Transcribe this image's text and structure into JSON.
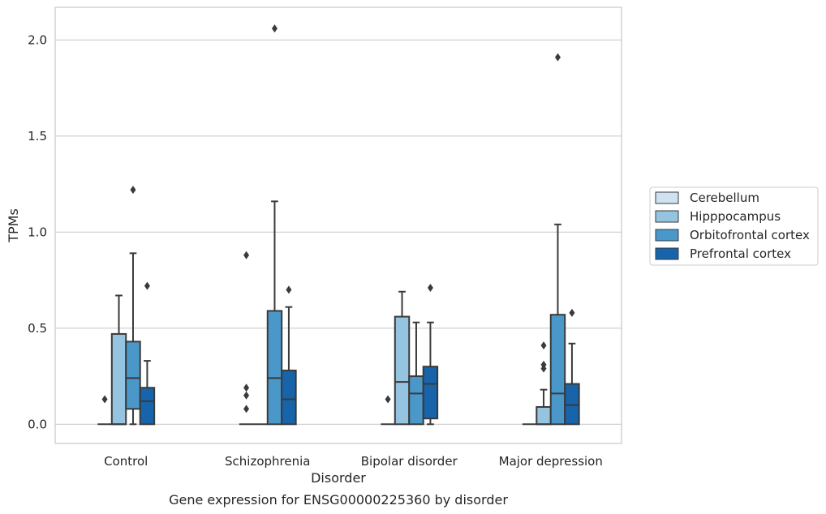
{
  "chart_data": {
    "type": "box",
    "title": "",
    "caption": "Gene expression for ENSG00000225360 by disorder",
    "xlabel": "Disorder",
    "ylabel": "TPMs",
    "categories": [
      "Control",
      "Schizophrenia",
      "Bipolar disorder",
      "Major depression"
    ],
    "ylim": [
      -0.1,
      2.17
    ],
    "yticks": [
      "0.0",
      "0.5",
      "1.0",
      "1.5",
      "2.0"
    ],
    "grid": true,
    "legend_position": "right",
    "series": [
      {
        "name": "Cerebellum",
        "color": "#d0e1f2",
        "boxes": [
          {
            "whislo": 0,
            "q1": 0,
            "med": 0,
            "q3": 0,
            "whishi": 0,
            "fliers": [
              0.13
            ]
          },
          {
            "whislo": 0,
            "q1": 0,
            "med": 0,
            "q3": 0,
            "whishi": 0,
            "fliers": [
              0.08,
              0.15,
              0.19,
              0.88
            ]
          },
          {
            "whislo": 0,
            "q1": 0,
            "med": 0,
            "q3": 0,
            "whishi": 0,
            "fliers": [
              0.13
            ]
          },
          {
            "whislo": 0,
            "q1": 0,
            "med": 0,
            "q3": 0,
            "whishi": 0,
            "fliers": []
          }
        ]
      },
      {
        "name": "Hipppocampus",
        "color": "#94c4df",
        "boxes": [
          {
            "whislo": 0,
            "q1": 0,
            "med": 0,
            "q3": 0.47,
            "whishi": 0.67,
            "fliers": []
          },
          {
            "whislo": 0,
            "q1": 0,
            "med": 0,
            "q3": 0,
            "whishi": 0,
            "fliers": []
          },
          {
            "whislo": 0,
            "q1": 0,
            "med": 0.22,
            "q3": 0.56,
            "whishi": 0.69,
            "fliers": []
          },
          {
            "whislo": 0,
            "q1": 0,
            "med": 0,
            "q3": 0.09,
            "whishi": 0.18,
            "fliers": [
              0.29,
              0.31,
              0.41
            ]
          }
        ]
      },
      {
        "name": "Orbitofrontal cortex",
        "color": "#4a98c9",
        "boxes": [
          {
            "whislo": 0,
            "q1": 0.08,
            "med": 0.24,
            "q3": 0.43,
            "whishi": 0.89,
            "fliers": [
              1.22
            ]
          },
          {
            "whislo": 0,
            "q1": 0,
            "med": 0.24,
            "q3": 0.59,
            "whishi": 1.16,
            "fliers": [
              2.06
            ]
          },
          {
            "whislo": 0,
            "q1": 0,
            "med": 0.16,
            "q3": 0.25,
            "whishi": 0.53,
            "fliers": []
          },
          {
            "whislo": 0,
            "q1": 0,
            "med": 0.16,
            "q3": 0.57,
            "whishi": 1.04,
            "fliers": [
              1.91
            ]
          }
        ]
      },
      {
        "name": "Prefrontal cortex",
        "color": "#1764ab",
        "boxes": [
          {
            "whislo": 0,
            "q1": 0,
            "med": 0.12,
            "q3": 0.19,
            "whishi": 0.33,
            "fliers": [
              0.72
            ]
          },
          {
            "whislo": 0,
            "q1": 0,
            "med": 0.13,
            "q3": 0.28,
            "whishi": 0.61,
            "fliers": [
              0.7
            ]
          },
          {
            "whislo": 0,
            "q1": 0.03,
            "med": 0.21,
            "q3": 0.3,
            "whishi": 0.53,
            "fliers": [
              0.71
            ]
          },
          {
            "whislo": 0,
            "q1": 0,
            "med": 0.1,
            "q3": 0.21,
            "whishi": 0.42,
            "fliers": [
              0.58
            ]
          }
        ]
      }
    ]
  }
}
